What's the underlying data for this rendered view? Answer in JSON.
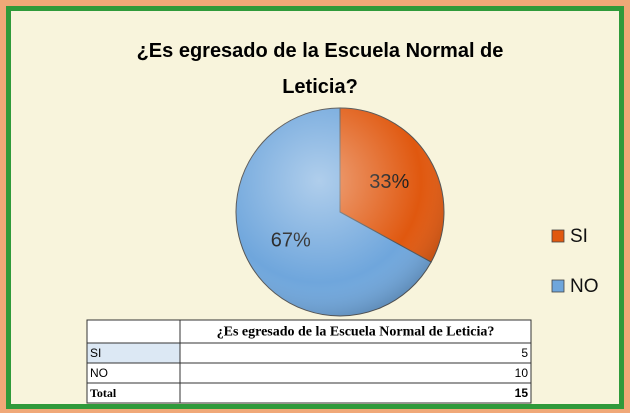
{
  "chart_data": {
    "type": "pie",
    "title": "¿Es egresado de la Escuela Normal de Leticia?",
    "categories": [
      "SI",
      "NO"
    ],
    "values": [
      33,
      67
    ],
    "value_labels": [
      "33%",
      "67%"
    ],
    "colors": [
      "#e0580f",
      "#6fa6dc"
    ],
    "legend": "right"
  },
  "table": {
    "header": "¿Es egresado de la Escuela Normal de Leticia?",
    "rows": [
      [
        "SI",
        5
      ],
      [
        "NO",
        10
      ],
      [
        "Total",
        15
      ]
    ]
  }
}
